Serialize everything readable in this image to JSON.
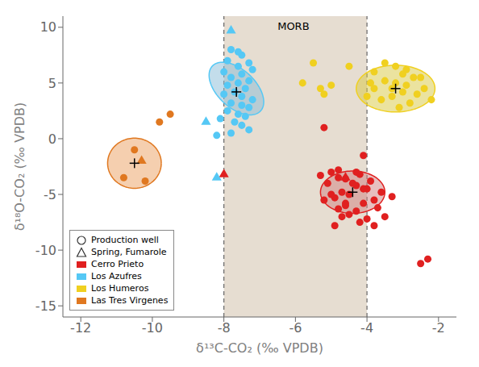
{
  "chart_data": {
    "type": "scatter",
    "xlabel": "δ¹³C-CO₂ (‰ VPDB)",
    "ylabel": "δ¹⁸O-CO₂ (‰ VPDB)",
    "xlim": [
      -12.5,
      -1.5
    ],
    "ylim": [
      -16,
      11
    ],
    "xticks": [
      -12,
      -10,
      -8,
      -6,
      -4,
      -2
    ],
    "yticks": [
      -15,
      -10,
      -5,
      0,
      5,
      10
    ],
    "grid": false,
    "legend": "lower left",
    "bands": [
      {
        "x": [
          -8,
          -4
        ],
        "color": "#c8b49a",
        "edge_color": "#666666"
      }
    ],
    "annotations": [
      {
        "text": "MORB",
        "x": -6.5,
        "y": 9.8
      }
    ],
    "point_types": [
      {
        "name": "Production well",
        "marker": "circle"
      },
      {
        "name": "Spring, Fumarole",
        "marker": "triangle"
      }
    ],
    "series": [
      {
        "name": "Cerro Prieto",
        "color": "#e02020",
        "wells": [
          [
            -5.2,
            1.0
          ],
          [
            -4.1,
            -1.5
          ],
          [
            -4.8,
            -2.8
          ],
          [
            -4.2,
            -3.2
          ],
          [
            -4.6,
            -3.6
          ],
          [
            -5.0,
            -3.0
          ],
          [
            -4.3,
            -4.2
          ],
          [
            -4.7,
            -4.8
          ],
          [
            -4.0,
            -4.5
          ],
          [
            -4.5,
            -5.0
          ],
          [
            -4.9,
            -5.3
          ],
          [
            -5.2,
            -5.5
          ],
          [
            -4.1,
            -5.8
          ],
          [
            -4.6,
            -6.0
          ],
          [
            -3.8,
            -5.5
          ],
          [
            -4.3,
            -6.5
          ],
          [
            -4.7,
            -7.0
          ],
          [
            -4.0,
            -7.2
          ],
          [
            -5.1,
            -4.0
          ],
          [
            -3.6,
            -4.8
          ],
          [
            -4.4,
            -4.0
          ],
          [
            -4.8,
            -3.5
          ],
          [
            -3.9,
            -3.8
          ],
          [
            -5.3,
            -3.3
          ],
          [
            -4.5,
            -6.8
          ],
          [
            -3.7,
            -6.2
          ],
          [
            -4.2,
            -7.5
          ],
          [
            -4.9,
            -7.8
          ],
          [
            -3.5,
            -7.0
          ],
          [
            -4.6,
            -5.8
          ],
          [
            -4.1,
            -4.5
          ],
          [
            -3.3,
            -5.2
          ],
          [
            -4.8,
            -6.3
          ],
          [
            -5.0,
            -5.0
          ],
          [
            -4.3,
            -3.0
          ],
          [
            -3.8,
            -7.8
          ],
          [
            -2.5,
            -11.2
          ],
          [
            -2.3,
            -10.8
          ]
        ],
        "springs": [
          [
            -4.6,
            -3.5
          ],
          [
            -8.0,
            -3.2
          ]
        ],
        "mean": [
          -4.4,
          -4.8
        ],
        "ellipse": {
          "cx": -4.4,
          "cy": -4.8,
          "width": 1.8,
          "height": 3.8,
          "angle": 0,
          "color": "#d08080"
        }
      },
      {
        "name": "Los Azufres",
        "color": "#55c8f5",
        "wells": [
          [
            -7.8,
            8.0
          ],
          [
            -7.5,
            7.5
          ],
          [
            -7.9,
            7.0
          ],
          [
            -7.3,
            6.8
          ],
          [
            -7.6,
            6.5
          ],
          [
            -7.2,
            6.2
          ],
          [
            -8.0,
            6.0
          ],
          [
            -7.5,
            5.8
          ],
          [
            -7.8,
            5.5
          ],
          [
            -7.3,
            5.2
          ],
          [
            -7.6,
            5.0
          ],
          [
            -7.9,
            4.8
          ],
          [
            -7.4,
            4.5
          ],
          [
            -7.7,
            4.2
          ],
          [
            -8.0,
            4.0
          ],
          [
            -7.5,
            3.8
          ],
          [
            -7.2,
            3.5
          ],
          [
            -7.8,
            3.2
          ],
          [
            -7.5,
            3.0
          ],
          [
            -7.3,
            2.8
          ],
          [
            -7.9,
            2.5
          ],
          [
            -7.6,
            2.2
          ],
          [
            -7.4,
            2.0
          ],
          [
            -8.1,
            1.8
          ],
          [
            -7.7,
            1.5
          ],
          [
            -7.5,
            1.2
          ],
          [
            -7.3,
            0.8
          ],
          [
            -7.8,
            0.5
          ],
          [
            -8.2,
            0.3
          ],
          [
            -7.6,
            7.8
          ]
        ],
        "springs": [
          [
            -7.8,
            9.7
          ],
          [
            -8.2,
            -3.5
          ],
          [
            -8.5,
            1.5
          ]
        ],
        "mean": [
          -7.65,
          4.2
        ],
        "ellipse": {
          "cx": -7.65,
          "cy": 4.5,
          "width": 1.3,
          "height": 4.8,
          "angle": 10,
          "color": "#88bbd8"
        }
      },
      {
        "name": "Los Humeros",
        "color": "#f0d020",
        "wells": [
          [
            -3.5,
            6.8
          ],
          [
            -3.2,
            6.5
          ],
          [
            -2.9,
            6.2
          ],
          [
            -3.8,
            6.0
          ],
          [
            -3.0,
            5.8
          ],
          [
            -2.7,
            5.5
          ],
          [
            -3.5,
            5.2
          ],
          [
            -3.2,
            5.0
          ],
          [
            -2.9,
            4.8
          ],
          [
            -3.8,
            4.5
          ],
          [
            -3.0,
            4.2
          ],
          [
            -2.6,
            4.0
          ],
          [
            -3.3,
            3.8
          ],
          [
            -3.6,
            3.5
          ],
          [
            -2.8,
            3.2
          ],
          [
            -3.1,
            2.8
          ],
          [
            -2.5,
            5.5
          ],
          [
            -3.9,
            5.0
          ],
          [
            -2.4,
            4.5
          ],
          [
            -4.0,
            3.8
          ],
          [
            -2.2,
            3.5
          ],
          [
            -3.3,
            4.5
          ]
        ],
        "outliers": [
          [
            -5.5,
            6.8
          ],
          [
            -5.3,
            4.5
          ],
          [
            -5.0,
            4.8
          ],
          [
            -5.2,
            4.0
          ],
          [
            -5.8,
            5.0
          ],
          [
            -4.5,
            6.5
          ]
        ],
        "mean": [
          -3.2,
          4.5
        ],
        "ellipse": {
          "cx": -3.2,
          "cy": 4.5,
          "width": 2.2,
          "height": 4.2,
          "angle": 0,
          "color": "#d8c840"
        }
      },
      {
        "name": "Las Tres Virgenes",
        "color": "#e07820",
        "wells": [
          [
            -10.5,
            -1.0
          ],
          [
            -10.8,
            -3.5
          ],
          [
            -10.2,
            -3.8
          ]
        ],
        "springs": [
          [
            -10.3,
            -2.0
          ]
        ],
        "outliers": [
          [
            -9.5,
            2.2
          ],
          [
            -9.8,
            1.5
          ]
        ],
        "mean": [
          -10.5,
          -2.2
        ],
        "ellipse": {
          "cx": -10.5,
          "cy": -2.2,
          "width": 1.5,
          "height": 4.5,
          "angle": 0,
          "color": "#eba060"
        }
      }
    ]
  }
}
